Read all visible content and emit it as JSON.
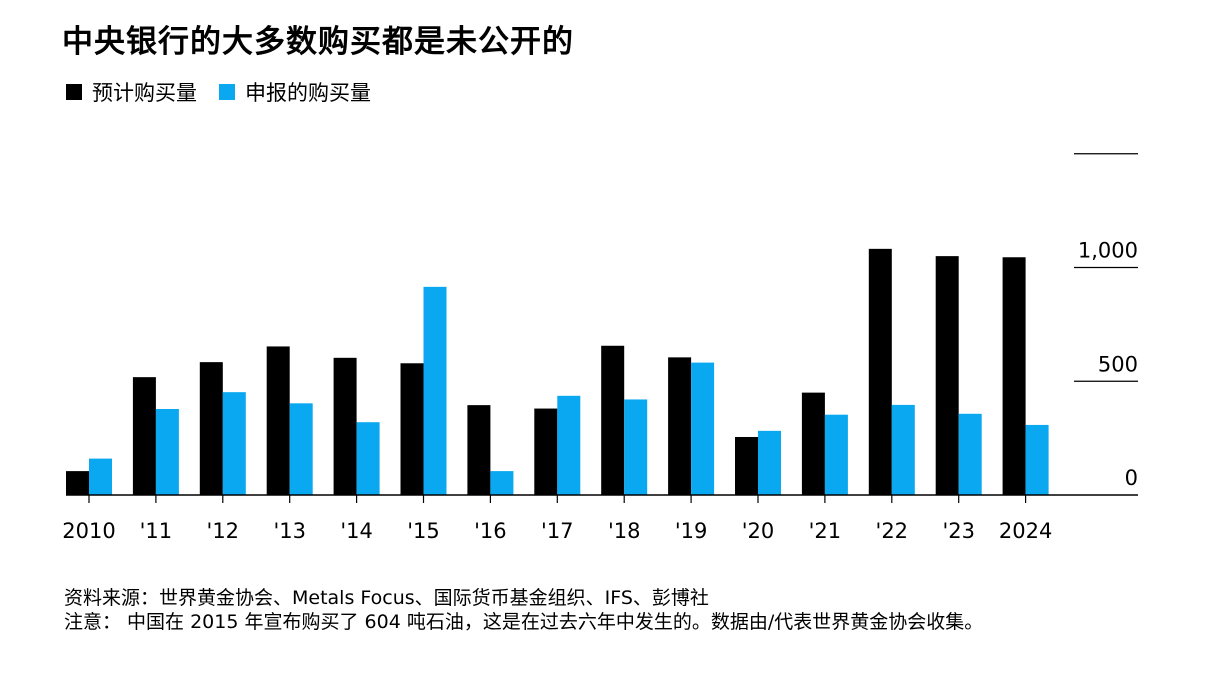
{
  "header": {
    "title": "中央银行的大多数购买都是未公开的"
  },
  "legend": [
    {
      "label": "预计购买量",
      "color": "#000000"
    },
    {
      "label": "申报的购买量",
      "color": "#0aa8f0"
    }
  ],
  "chart_data": {
    "type": "bar",
    "categories": [
      "2010",
      "'11",
      "'12",
      "'13",
      "'14",
      "'15",
      "'16",
      "'17",
      "'18",
      "'19",
      "'20",
      "'21",
      "'22",
      "'23",
      "2024"
    ],
    "series": [
      {
        "name": "预计购买量",
        "color": "#000000",
        "values": [
          105,
          518,
          584,
          653,
          603,
          579,
          395,
          380,
          656,
          605,
          255,
          450,
          1082,
          1050,
          1045
        ]
      },
      {
        "name": "申报的购买量",
        "color": "#0aa8f0",
        "values": [
          160,
          378,
          452,
          403,
          320,
          915,
          105,
          436,
          420,
          582,
          282,
          353,
          396,
          357,
          308
        ]
      }
    ],
    "ylim": [
      0,
      1500
    ],
    "yticks": [
      0,
      500,
      1000
    ],
    "ytick_labels": [
      "0",
      "500",
      "1,000"
    ],
    "grid": false,
    "legend_position": "top-left"
  },
  "footer": {
    "source": "资料来源：世界黄金协会、Metals Focus、国际货币基金组织、IFS、彭博社",
    "note": "注意： 中国在 2015 年宣布购买了 604 吨石油，这是在过去六年中发生的。数据由/代表世界黄金协会收集。"
  }
}
